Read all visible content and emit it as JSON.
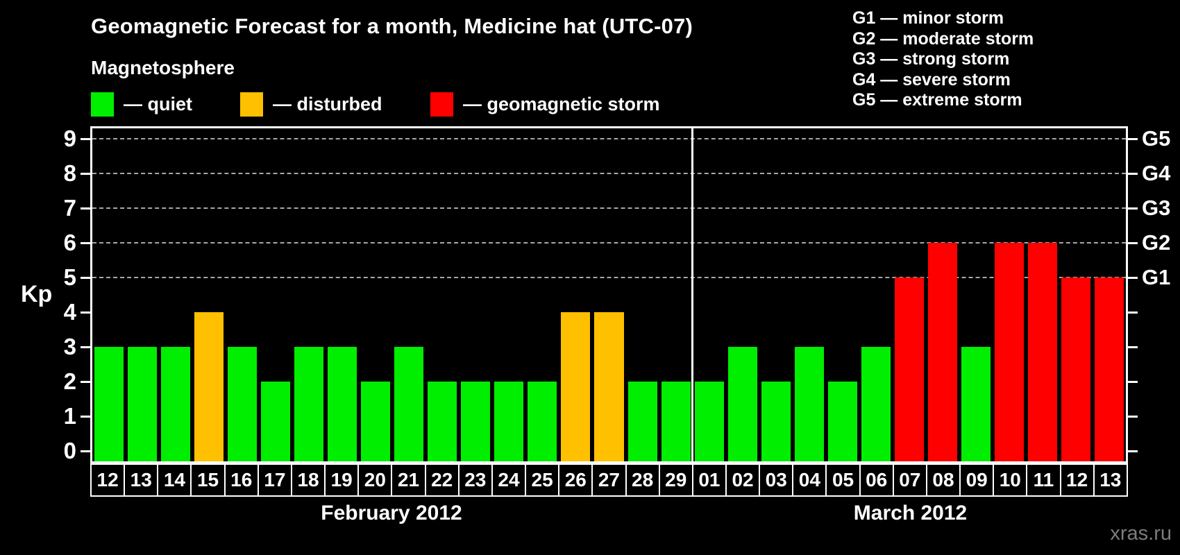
{
  "header": {
    "title": "Geomagnetic Forecast for a month, Medicine hat (UTC-07)",
    "subtitle": "Magnetosphere",
    "legend": [
      {
        "status": "quiet",
        "label": "— quiet"
      },
      {
        "status": "disturbed",
        "label": "— disturbed"
      },
      {
        "status": "storm",
        "label": "— geomagnetic storm"
      }
    ],
    "g_scale_legend": [
      "G1 — minor storm",
      "G2 — moderate storm",
      "G3 — strong storm",
      "G4 — severe storm",
      "G5 — extreme storm"
    ]
  },
  "chart_data": {
    "type": "bar",
    "title": "Geomagnetic Forecast for a month, Medicine hat (UTC-07)",
    "ylabel": "Kp",
    "ylim": [
      0,
      9
    ],
    "yticks": [
      0,
      1,
      2,
      3,
      4,
      5,
      6,
      7,
      8,
      9
    ],
    "gridlines_at": [
      5,
      6,
      7,
      8,
      9
    ],
    "grid": "dashed horizontal lines at Kp 5-9 only",
    "legend_position": "top-left",
    "right_axis": [
      {
        "value": 5,
        "label": "G1"
      },
      {
        "value": 6,
        "label": "G2"
      },
      {
        "value": 7,
        "label": "G3"
      },
      {
        "value": 8,
        "label": "G4"
      },
      {
        "value": 9,
        "label": "G5"
      }
    ],
    "months": [
      {
        "label": "February 2012",
        "days": [
          {
            "day": "12",
            "kp": 3,
            "status": "quiet"
          },
          {
            "day": "13",
            "kp": 3,
            "status": "quiet"
          },
          {
            "day": "14",
            "kp": 3,
            "status": "quiet"
          },
          {
            "day": "15",
            "kp": 4,
            "status": "disturbed"
          },
          {
            "day": "16",
            "kp": 3,
            "status": "quiet"
          },
          {
            "day": "17",
            "kp": 2,
            "status": "quiet"
          },
          {
            "day": "18",
            "kp": 3,
            "status": "quiet"
          },
          {
            "day": "19",
            "kp": 3,
            "status": "quiet"
          },
          {
            "day": "20",
            "kp": 2,
            "status": "quiet"
          },
          {
            "day": "21",
            "kp": 3,
            "status": "quiet"
          },
          {
            "day": "22",
            "kp": 2,
            "status": "quiet"
          },
          {
            "day": "23",
            "kp": 2,
            "status": "quiet"
          },
          {
            "day": "24",
            "kp": 2,
            "status": "quiet"
          },
          {
            "day": "25",
            "kp": 2,
            "status": "quiet"
          },
          {
            "day": "26",
            "kp": 4,
            "status": "disturbed"
          },
          {
            "day": "27",
            "kp": 4,
            "status": "disturbed"
          },
          {
            "day": "28",
            "kp": 2,
            "status": "quiet"
          },
          {
            "day": "29",
            "kp": 2,
            "status": "quiet"
          }
        ]
      },
      {
        "label": "March 2012",
        "days": [
          {
            "day": "01",
            "kp": 2,
            "status": "quiet"
          },
          {
            "day": "02",
            "kp": 3,
            "status": "quiet"
          },
          {
            "day": "03",
            "kp": 2,
            "status": "quiet"
          },
          {
            "day": "04",
            "kp": 3,
            "status": "quiet"
          },
          {
            "day": "05",
            "kp": 2,
            "status": "quiet"
          },
          {
            "day": "06",
            "kp": 3,
            "status": "quiet"
          },
          {
            "day": "07",
            "kp": 5,
            "status": "storm"
          },
          {
            "day": "08",
            "kp": 6,
            "status": "storm"
          },
          {
            "day": "09",
            "kp": 3,
            "status": "quiet"
          },
          {
            "day": "10",
            "kp": 6,
            "status": "storm"
          },
          {
            "day": "11",
            "kp": 6,
            "status": "storm"
          },
          {
            "day": "12",
            "kp": 5,
            "status": "storm"
          },
          {
            "day": "13",
            "kp": 5,
            "status": "storm"
          }
        ]
      }
    ]
  },
  "colors": {
    "background": "#000000",
    "quiet": "#00ee00",
    "disturbed": "#ffc000",
    "storm": "#ff0000",
    "frame": "#ffffff",
    "gridline": "#a8a8a8",
    "watermark_color": "#7c7c7c"
  },
  "watermark": "xras.ru"
}
